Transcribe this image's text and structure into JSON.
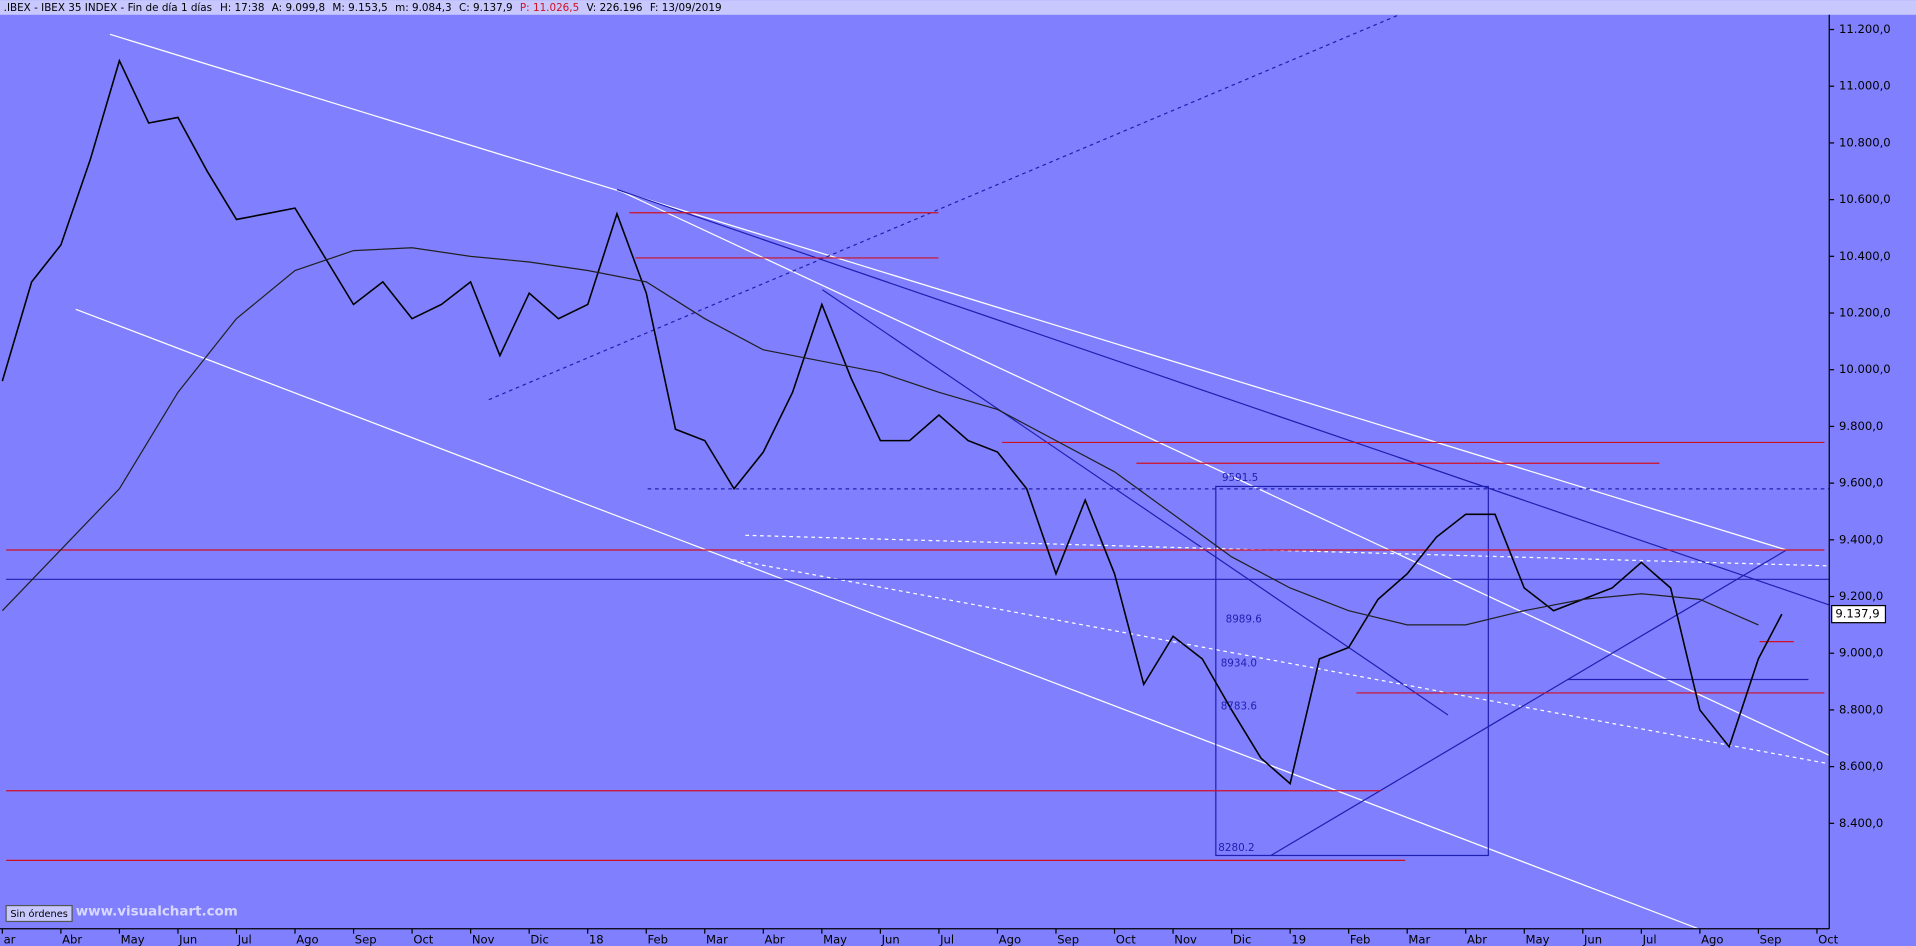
{
  "header": {
    "title": ".IBEX - IBEX 35 INDEX - Fin de día 1 días",
    "items": [
      "H: 17:38",
      "A: 9.099,8",
      "M: 9.153,5",
      "m: 9.084,3",
      "C: 9.137,9",
      "P: 11.026,5",
      "V: 226.196",
      "F: 13/09/2019"
    ]
  },
  "chart_data": {
    "type": "line",
    "xlim": [
      -0.04,
      31.21
    ],
    "ylim": [
      8028,
      11252
    ],
    "xticks": [
      {
        "value": 0,
        "label": "ar"
      },
      {
        "value": 1,
        "label": "Abr"
      },
      {
        "value": 2,
        "label": "May"
      },
      {
        "value": 3,
        "label": "Jun"
      },
      {
        "value": 4,
        "label": "Jul"
      },
      {
        "value": 5,
        "label": "Ago"
      },
      {
        "value": 6,
        "label": "Sep"
      },
      {
        "value": 7,
        "label": "Oct"
      },
      {
        "value": 8,
        "label": "Nov"
      },
      {
        "value": 9,
        "label": "Dic"
      },
      {
        "value": 10,
        "label": "18"
      },
      {
        "value": 11,
        "label": "Feb"
      },
      {
        "value": 12,
        "label": "Mar"
      },
      {
        "value": 13,
        "label": "Abr"
      },
      {
        "value": 14,
        "label": "May"
      },
      {
        "value": 15,
        "label": "Jun"
      },
      {
        "value": 16,
        "label": "Jul"
      },
      {
        "value": 17,
        "label": "Ago"
      },
      {
        "value": 18,
        "label": "Sep"
      },
      {
        "value": 19,
        "label": "Oct"
      },
      {
        "value": 20,
        "label": "Nov"
      },
      {
        "value": 21,
        "label": "Dic"
      },
      {
        "value": 22,
        "label": "19"
      },
      {
        "value": 23,
        "label": "Feb"
      },
      {
        "value": 24,
        "label": "Mar"
      },
      {
        "value": 25,
        "label": "Abr"
      },
      {
        "value": 26,
        "label": "May"
      },
      {
        "value": 27,
        "label": "Jun"
      },
      {
        "value": 28,
        "label": "Jul"
      },
      {
        "value": 29,
        "label": "Ago"
      },
      {
        "value": 30,
        "label": "Sep"
      },
      {
        "value": 31,
        "label": "Oct"
      }
    ],
    "yticks": [
      {
        "value": 8400,
        "label": "8.400,0"
      },
      {
        "value": 8600,
        "label": "8.600,0"
      },
      {
        "value": 8800,
        "label": "8.800,0"
      },
      {
        "value": 9000,
        "label": "9.000,0"
      },
      {
        "value": 9200,
        "label": "9.200,0"
      },
      {
        "value": 9400,
        "label": "9.400,0"
      },
      {
        "value": 9600,
        "label": "9.600,0"
      },
      {
        "value": 9800,
        "label": "9.800,0"
      },
      {
        "value": 10000,
        "label": "10.000,0"
      },
      {
        "value": 10200,
        "label": "10.200,0"
      },
      {
        "value": 10400,
        "label": "10.400,0"
      },
      {
        "value": 10600,
        "label": "10.600,0"
      },
      {
        "value": 10800,
        "label": "10.800,0"
      },
      {
        "value": 11000,
        "label": "11.000,0"
      },
      {
        "value": 11200,
        "label": "11.200,0"
      }
    ],
    "series": [
      {
        "color": "#000000",
        "x": [
          0,
          0.5,
          1,
          1.5,
          2,
          2.5,
          3,
          3.5,
          4,
          4.5,
          5,
          5.5,
          6,
          6.5,
          7,
          7.5,
          8,
          8.5,
          9,
          9.5,
          10,
          10.5,
          11,
          11.5,
          12,
          12.5,
          13,
          13.5,
          14,
          14.5,
          15,
          15.5,
          16,
          16.5,
          17,
          17.5,
          18,
          18.5,
          19,
          19.5,
          20,
          20.5,
          21,
          21.5,
          22,
          22.5,
          23,
          23.5,
          24,
          24.5,
          25,
          25.5,
          26,
          26.5,
          27,
          27.5,
          28,
          28.5,
          29,
          29.5,
          30,
          30.4
        ],
        "values": [
          9960,
          10310,
          10440,
          10740,
          11090,
          10870,
          10890,
          10700,
          10530,
          10550,
          10570,
          10400,
          10230,
          10310,
          10180,
          10230,
          10310,
          10050,
          10270,
          10180,
          10230,
          10550,
          10270,
          9790,
          9750,
          9580,
          9710,
          9920,
          10230,
          9970,
          9750,
          9750,
          9840,
          9750,
          9710,
          9580,
          9280,
          9540,
          9280,
          8890,
          9060,
          8980,
          8800,
          8630,
          8540,
          8980,
          9020,
          9190,
          9280,
          9410,
          9490,
          9490,
          9230,
          9150,
          9190,
          9230,
          9320,
          9230,
          8800,
          8670,
          8980,
          9137.9
        ]
      },
      {
        "color": "#202020",
        "x": [
          0,
          2,
          3,
          4,
          5,
          6,
          7,
          8,
          9,
          10,
          11,
          12,
          13,
          14,
          15,
          16,
          17,
          18,
          19,
          20,
          21,
          22,
          23,
          24,
          25,
          26,
          27,
          28,
          29,
          30
        ],
        "values": [
          9150,
          9580,
          9920,
          10180,
          10350,
          10420,
          10430,
          10400,
          10380,
          10350,
          10310,
          10180,
          10070,
          10030,
          9990,
          9920,
          9860,
          9750,
          9640,
          9490,
          9340,
          9230,
          9150,
          9100,
          9100,
          9150,
          9190,
          9210,
          9190,
          9100
        ]
      }
    ],
    "last_label": "9.137,9",
    "annotations": [
      "9591.5",
      "8989.6",
      "8934.0",
      "8783.6",
      "8280.2"
    ]
  },
  "footer": {
    "status": "Sin órdenes",
    "watermark": "www.visualchart.com"
  }
}
